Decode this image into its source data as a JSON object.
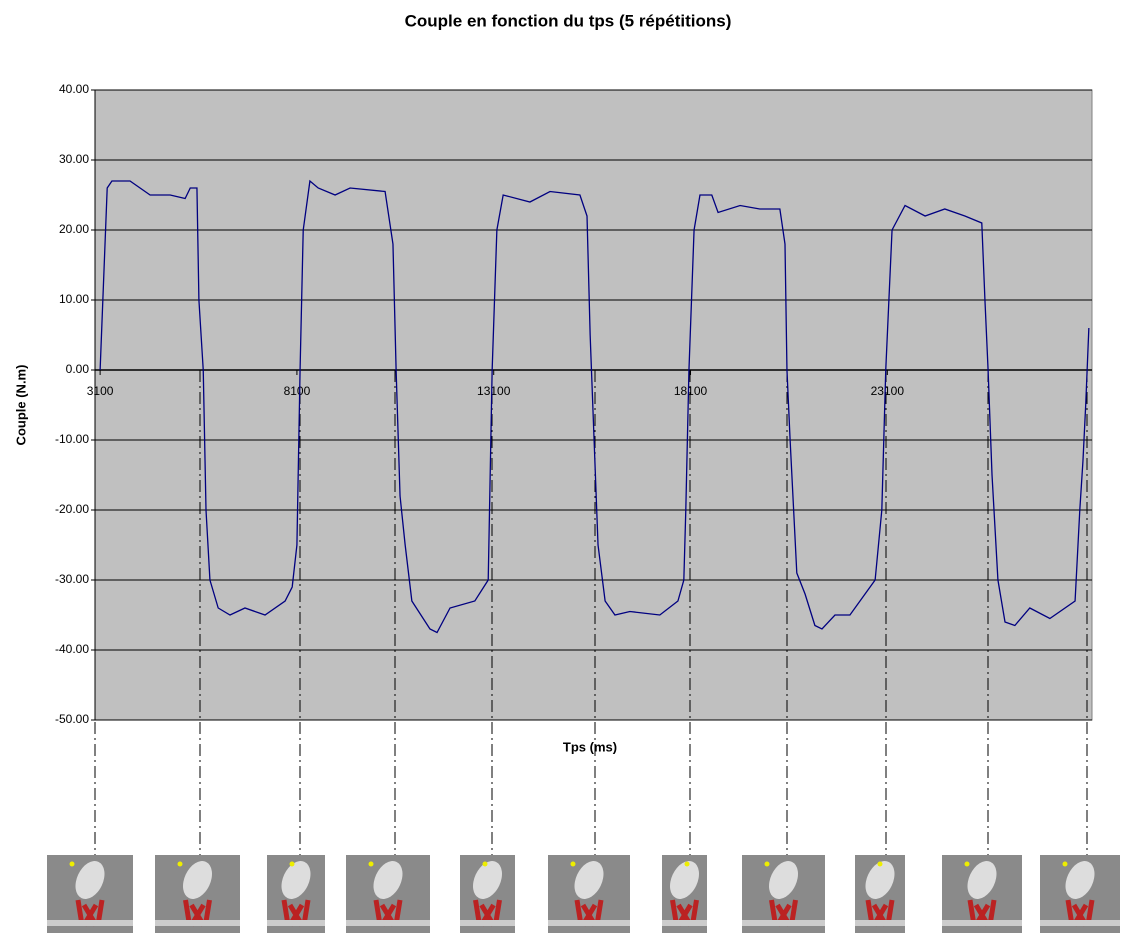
{
  "chart_data": {
    "type": "line",
    "title": "Couple en fonction du tps (5 répétitions)",
    "y_label": "Couple (N.m)",
    "x_label": "Tps (ms)",
    "color": "#000080",
    "grid": true,
    "xlim": [
      2970,
      28300
    ],
    "xticks": [
      3100,
      8100,
      13100,
      18100,
      23100
    ],
    "ylim": [
      -50,
      40
    ],
    "yticks": [
      {
        "value": 40,
        "label": "40.00"
      },
      {
        "value": 30,
        "label": "30.00"
      },
      {
        "value": 20,
        "label": "20.00"
      },
      {
        "value": 10,
        "label": "10.00"
      },
      {
        "value": 0,
        "label": "0.00"
      },
      {
        "value": -10,
        "label": "-10.00"
      },
      {
        "value": -20,
        "label": "-20.00"
      },
      {
        "value": -30,
        "label": "-30.00"
      },
      {
        "value": -40,
        "label": "-40.00"
      },
      {
        "value": -50,
        "label": "-50.00"
      }
    ],
    "x": [
      3100,
      3280,
      3400,
      3860,
      4370,
      4880,
      5260,
      5390,
      5560,
      5610,
      5720,
      5790,
      5890,
      6100,
      6400,
      6780,
      7290,
      7800,
      7980,
      8100,
      8180,
      8260,
      8430,
      8640,
      9070,
      9450,
      10340,
      10540,
      10620,
      10720,
      10850,
      11020,
      11480,
      11660,
      11990,
      12620,
      12960,
      13060,
      13180,
      13340,
      14020,
      14530,
      15290,
      15470,
      15550,
      15650,
      15750,
      15930,
      16180,
      16560,
      17320,
      17780,
      17930,
      17980,
      18060,
      18190,
      18340,
      18640,
      18800,
      19360,
      19860,
      20370,
      20500,
      20550,
      20630,
      20800,
      21010,
      21260,
      21440,
      21770,
      22150,
      22790,
      22960,
      23060,
      23220,
      23550,
      24060,
      24560,
      25070,
      25500,
      25580,
      25660,
      25760,
      25910,
      26090,
      26340,
      26720,
      27230,
      27870,
      27990,
      28070,
      28140,
      28220
    ],
    "values": [
      0,
      26,
      27,
      27,
      25,
      25,
      24.5,
      26,
      26,
      10,
      0,
      -20,
      -30,
      -34,
      -35,
      -34,
      -35,
      -33,
      -31,
      -25,
      0,
      20,
      27,
      26,
      25,
      26,
      25.5,
      18,
      0,
      -18,
      -25,
      -33,
      -37,
      -37.5,
      -34,
      -33,
      -30,
      0,
      20,
      25,
      24,
      25.5,
      25,
      22,
      5,
      -10,
      -25,
      -33,
      -35,
      -34.5,
      -35,
      -33,
      -30,
      -20,
      0,
      20,
      25,
      25,
      22.5,
      23.5,
      23,
      23,
      18,
      0,
      -10,
      -29,
      -32,
      -36.5,
      -37,
      -35,
      -35,
      -30,
      -20,
      0,
      20,
      23.5,
      22,
      23,
      22,
      21,
      10,
      0,
      -15,
      -30,
      -36,
      -36.5,
      -34,
      -35.5,
      -33,
      -20,
      -13,
      -5,
      6
    ]
  }
}
